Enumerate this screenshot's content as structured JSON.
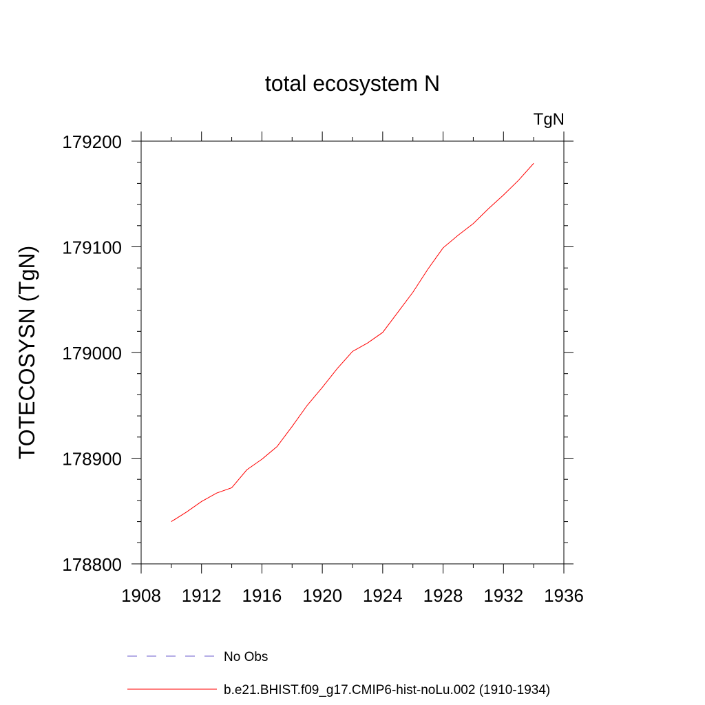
{
  "chart_data": {
    "type": "line",
    "title": "total ecosystem N",
    "units_label": "TgN",
    "ylabel": "TOTECOSYSN  (TgN)",
    "xlabel": "",
    "xlim": [
      1908,
      1936
    ],
    "ylim": [
      178800,
      179200
    ],
    "x_major_ticks": [
      1908,
      1912,
      1916,
      1920,
      1924,
      1928,
      1932,
      1936
    ],
    "x_minor_step": 2,
    "y_major_ticks": [
      178800,
      178900,
      179000,
      179100,
      179200
    ],
    "y_minor_step": 20,
    "grid": false,
    "series": [
      {
        "name": "b.e21.BHIST.f09_g17.CMIP6-hist-noLu.002 (1910-1934)",
        "color": "#ff0000",
        "style": "solid",
        "x": [
          1910,
          1911,
          1912,
          1913,
          1914,
          1915,
          1916,
          1917,
          1918,
          1919,
          1920,
          1921,
          1922,
          1923,
          1924,
          1925,
          1926,
          1927,
          1928,
          1929,
          1930,
          1931,
          1932,
          1933,
          1934
        ],
        "values": [
          178840,
          178849,
          178859,
          178867,
          178872,
          178889,
          178899,
          178911,
          178930,
          178950,
          178967,
          178985,
          179001,
          179009,
          179019,
          179038,
          179057,
          179079,
          179099,
          179111,
          179122,
          179136,
          179149,
          179163,
          179179
        ]
      }
    ],
    "legend": [
      {
        "label": "No Obs",
        "color": "#6a5acd",
        "style": "dashed"
      },
      {
        "label": "b.e21.BHIST.f09_g17.CMIP6-hist-noLu.002 (1910-1934)",
        "color": "#ff0000",
        "style": "solid"
      }
    ],
    "legend_position": "bottom-center"
  }
}
